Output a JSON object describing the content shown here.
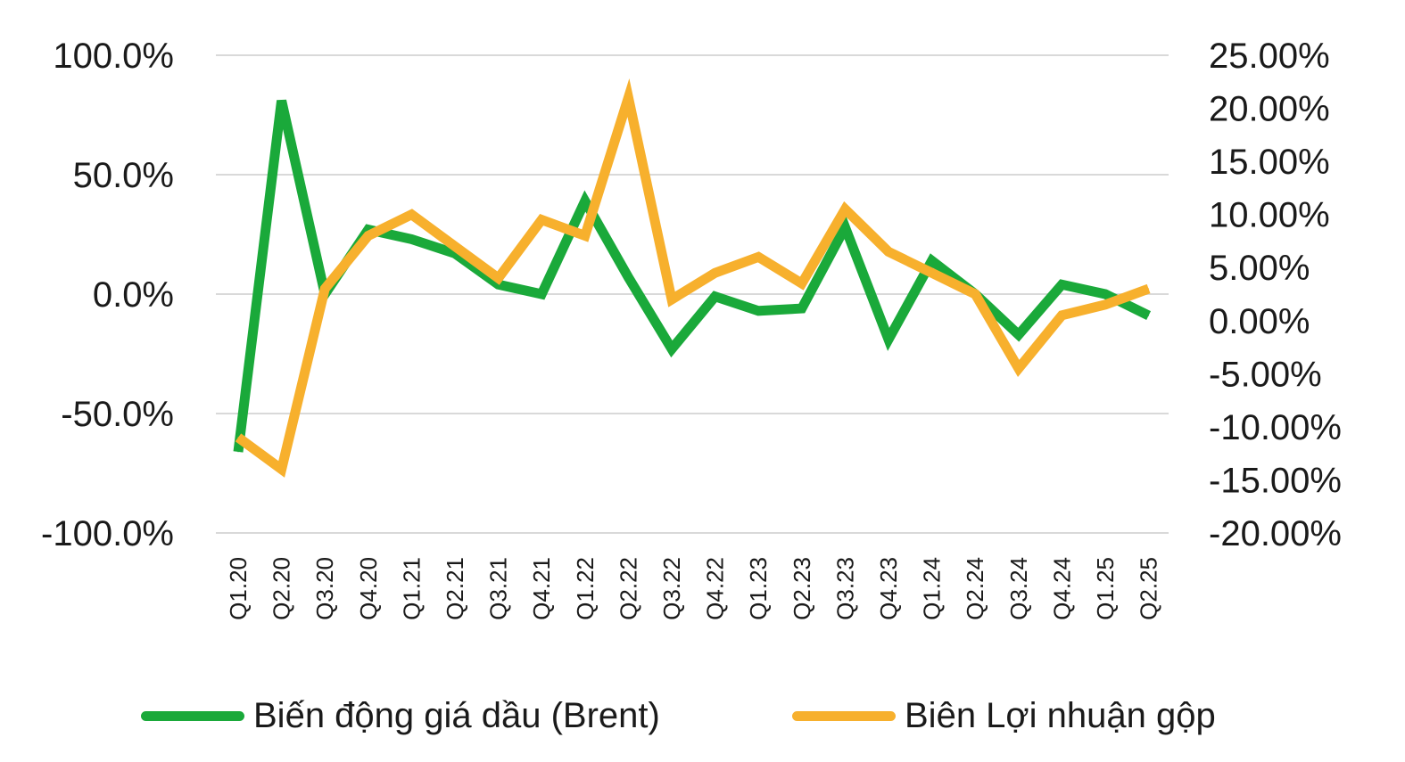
{
  "chart_data": {
    "type": "line",
    "categories": [
      "Q1.20",
      "Q2.20",
      "Q3.20",
      "Q4.20",
      "Q1.21",
      "Q2.21",
      "Q3.21",
      "Q4.21",
      "Q1.22",
      "Q2.22",
      "Q3.22",
      "Q4.22",
      "Q1.23",
      "Q2.23",
      "Q3.23",
      "Q4.23",
      "Q1.24",
      "Q2.24",
      "Q3.24",
      "Q4.24",
      "Q1.25",
      "Q2.25"
    ],
    "y_left": {
      "ticks": [
        100,
        50,
        0,
        -50,
        -100
      ],
      "tick_labels": [
        "100.0%",
        "50.0%",
        "0.0%",
        "-50.0%",
        "-100.0%"
      ],
      "ylim": [
        -100,
        100
      ]
    },
    "y_right": {
      "ticks": [
        25,
        20,
        15,
        10,
        5,
        0,
        -5,
        -10,
        -15,
        -20
      ],
      "tick_labels": [
        "25.00%",
        "20.00%",
        "15.00%",
        "10.00%",
        "5.00%",
        "0.00%",
        "-5.00%",
        "-10.00%",
        "-15.00%",
        "-20.00%"
      ],
      "ylim": [
        -20,
        25
      ]
    },
    "grid": true,
    "legend_position": "bottom",
    "series": [
      {
        "name": "Biến động giá dầu (Brent)",
        "axis": "left",
        "color": "#1aa93a",
        "values": [
          -66,
          81,
          0,
          27,
          23,
          17,
          4,
          0,
          39,
          7,
          -23,
          -1,
          -7,
          -6,
          28,
          -19,
          14,
          0,
          -17,
          4,
          0,
          -9
        ]
      },
      {
        "name": "Biên Lợi nhuận gộp",
        "axis": "right",
        "color": "#f7b02d",
        "values": [
          -11,
          -14,
          3,
          8,
          10,
          7,
          4,
          9.5,
          8,
          21,
          2,
          4.5,
          6,
          3.5,
          10.5,
          6.5,
          4.5,
          2.5,
          -4.5,
          0.5,
          1.5,
          3
        ]
      }
    ]
  }
}
